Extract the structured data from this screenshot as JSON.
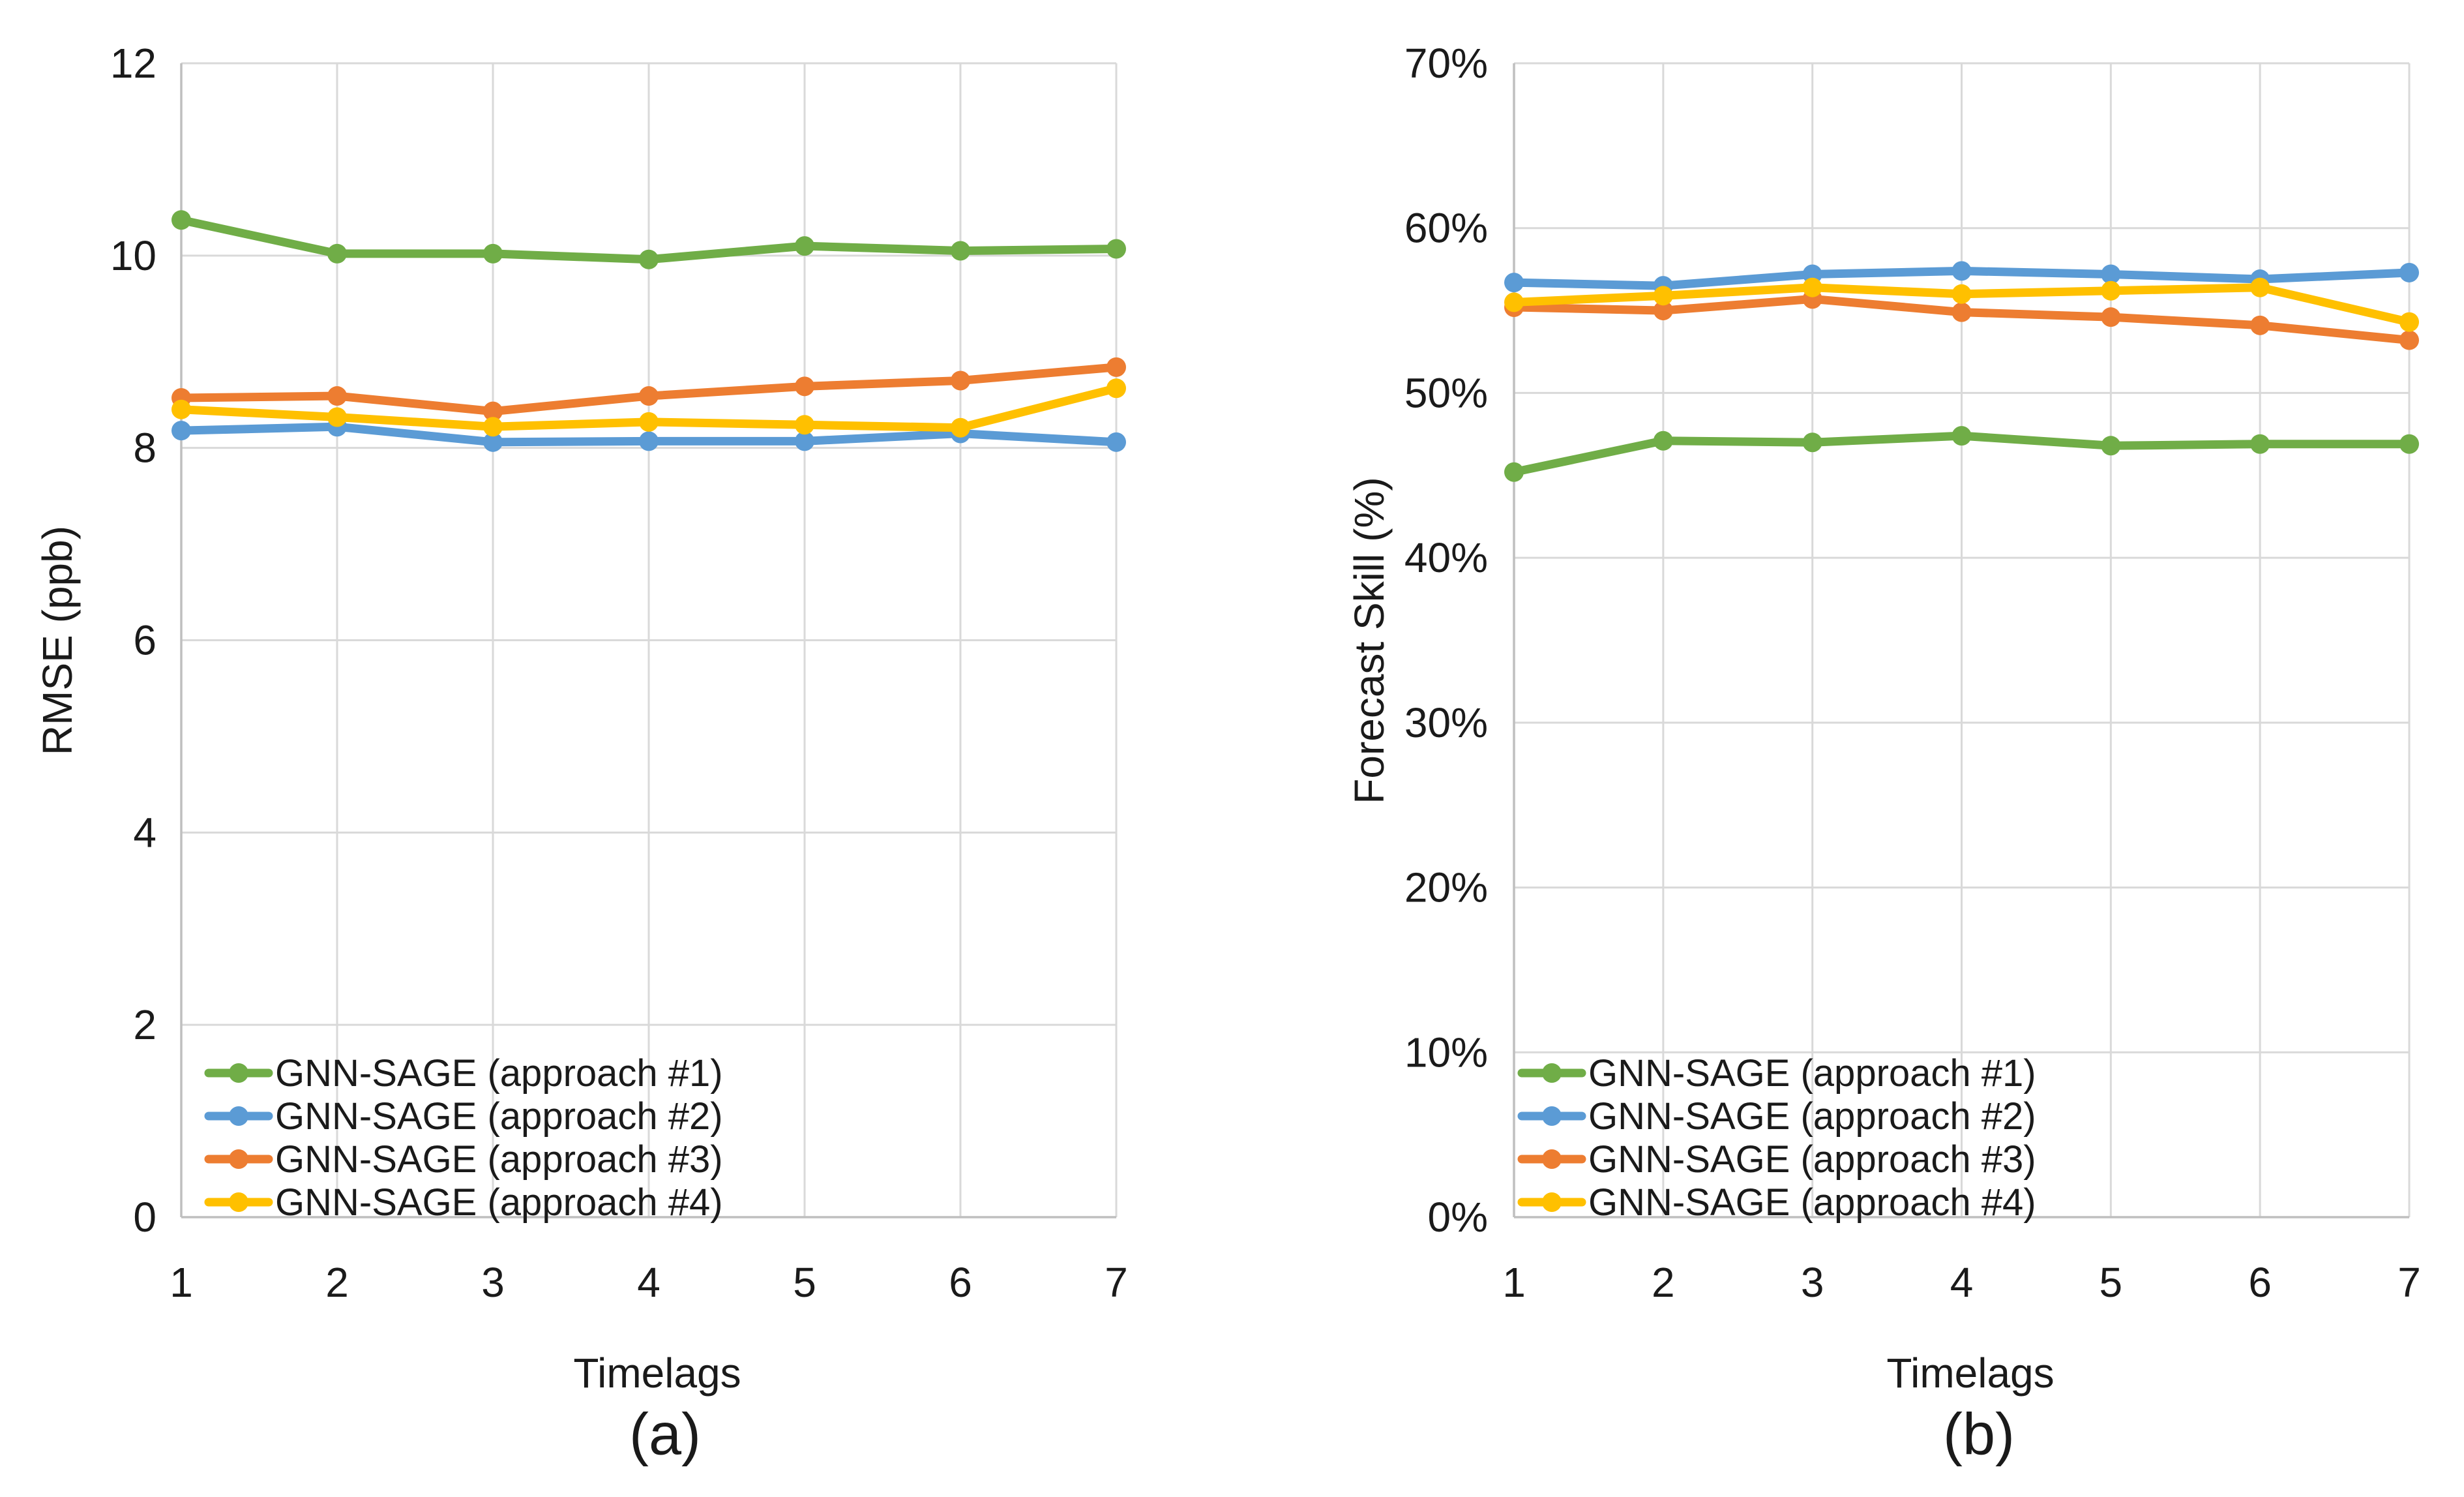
{
  "figure": {
    "background_color": "#FFFFFF",
    "text_color": "#1a1a1a",
    "gridline_color": "#D9D9D9",
    "axis_line_color": "#BFBFBF"
  },
  "chart_data": [
    {
      "type": "line",
      "panel": "left",
      "caption": "(a)",
      "xlabel": "Timelags",
      "ylabel": "RMSE (ppb)",
      "x": [
        1,
        2,
        3,
        4,
        5,
        6,
        7
      ],
      "x_tick_labels": [
        "1",
        "2",
        "3",
        "4",
        "5",
        "6",
        "7"
      ],
      "ylim": [
        0,
        12
      ],
      "y_ticks": [
        0,
        2,
        4,
        6,
        8,
        10,
        12
      ],
      "y_tick_labels": [
        "0",
        "2",
        "4",
        "6",
        "8",
        "10",
        "12"
      ],
      "grid": true,
      "legend_position": "inside-bottom-left",
      "series": [
        {
          "name": "GNN-SAGE (approach #1)",
          "color": "#70AD47",
          "values": [
            10.37,
            10.02,
            10.02,
            9.96,
            10.1,
            10.05,
            10.07
          ]
        },
        {
          "name": "GNN-SAGE (approach #2)",
          "color": "#5B9BD5",
          "values": [
            8.18,
            8.22,
            8.06,
            8.07,
            8.07,
            8.15,
            8.06
          ]
        },
        {
          "name": "GNN-SAGE (approach #3)",
          "color": "#ED7D31",
          "values": [
            8.52,
            8.54,
            8.38,
            8.54,
            8.64,
            8.7,
            8.84
          ]
        },
        {
          "name": "GNN-SAGE (approach #4)",
          "color": "#FFC000",
          "values": [
            8.4,
            8.32,
            8.22,
            8.27,
            8.24,
            8.21,
            8.62
          ]
        }
      ]
    },
    {
      "type": "line",
      "panel": "right",
      "caption": "(b)",
      "xlabel": "Timelags",
      "ylabel": "Forecast Skill (%)",
      "x": [
        1,
        2,
        3,
        4,
        5,
        6,
        7
      ],
      "x_tick_labels": [
        "1",
        "2",
        "3",
        "4",
        "5",
        "6",
        "7"
      ],
      "ylim": [
        0,
        70
      ],
      "y_ticks": [
        0,
        10,
        20,
        30,
        40,
        50,
        60,
        70
      ],
      "y_tick_labels": [
        "0%",
        "10%",
        "20%",
        "30%",
        "40%",
        "50%",
        "60%",
        "70%"
      ],
      "grid": true,
      "legend_position": "inside-bottom-left",
      "series": [
        {
          "name": "GNN-SAGE (approach #1)",
          "color": "#70AD47",
          "values": [
            45.2,
            47.1,
            47.0,
            47.4,
            46.8,
            46.9,
            46.9
          ]
        },
        {
          "name": "GNN-SAGE (approach #2)",
          "color": "#5B9BD5",
          "values": [
            56.7,
            56.5,
            57.2,
            57.4,
            57.2,
            56.9,
            57.3
          ]
        },
        {
          "name": "GNN-SAGE (approach #3)",
          "color": "#ED7D31",
          "values": [
            55.2,
            55.0,
            55.7,
            54.9,
            54.6,
            54.1,
            53.2
          ]
        },
        {
          "name": "GNN-SAGE (approach #4)",
          "color": "#FFC000",
          "values": [
            55.5,
            55.9,
            56.4,
            56.0,
            56.2,
            56.4,
            54.3
          ]
        }
      ]
    }
  ]
}
